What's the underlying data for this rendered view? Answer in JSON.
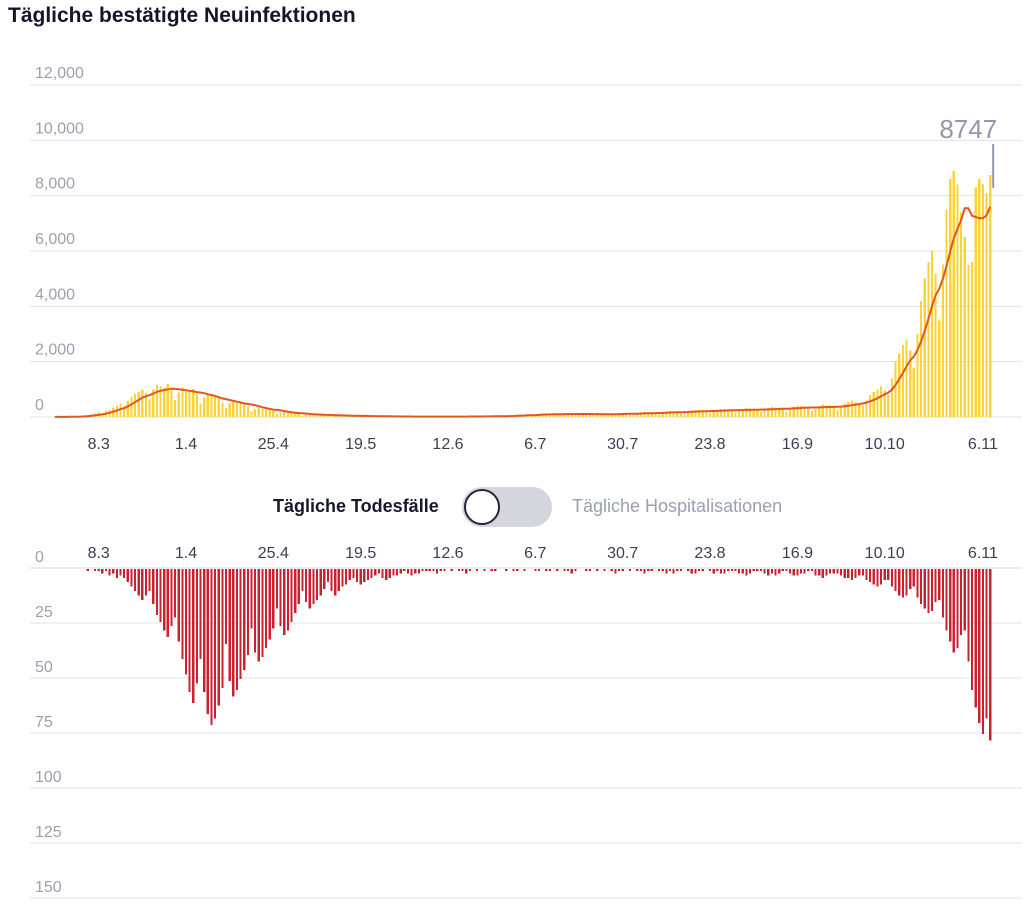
{
  "title": "Tägliche bestätigte Neuinfektionen",
  "toggle": {
    "left_label": "Tägliche Todesfälle",
    "right_label": "Tägliche Hospitalisationen",
    "selected": "left"
  },
  "colors": {
    "title_text": "#13152a",
    "axis_label_dark": "#3b3e51",
    "axis_label_muted": "#9ba0ae",
    "gridline": "#e3e3e9",
    "zero_line": "#d9d9df",
    "bars_yellow": "#fdd235",
    "line_orange": "#e2571c",
    "bars_red": "#c9212f",
    "annotation": "#9298ab",
    "toggle_track": "#d5d5dd",
    "toggle_knob_border": "#23263c"
  },
  "chart_data": [
    {
      "id": "infections",
      "type": "bar",
      "title": "Tägliche bestätigte Neuinfektionen",
      "overlay_line": "7-day moving average",
      "x_tick_labels": [
        "8.3",
        "1.4",
        "25.4",
        "19.5",
        "12.6",
        "6.7",
        "30.7",
        "23.8",
        "16.9",
        "10.10",
        "6.11"
      ],
      "x_tick_day_index": [
        12,
        36,
        60,
        84,
        108,
        132,
        156,
        180,
        204,
        228,
        255
      ],
      "y_ticks": [
        0,
        2000,
        4000,
        6000,
        8000,
        10000,
        12000
      ],
      "y_tick_labels": [
        "0",
        "2,000",
        "4,000",
        "6,000",
        "8,000",
        "10,000",
        "12,000"
      ],
      "ylim": [
        0,
        12000
      ],
      "grid": true,
      "annotation": {
        "label": "8747",
        "value": 8747,
        "position": "last-bar"
      },
      "values": [
        2,
        3,
        5,
        8,
        11,
        15,
        22,
        35,
        50,
        68,
        95,
        125,
        160,
        120,
        210,
        280,
        340,
        410,
        480,
        380,
        580,
        720,
        840,
        900,
        980,
        860,
        640,
        1000,
        1160,
        1100,
        1060,
        1190,
        1000,
        610,
        880,
        1060,
        980,
        920,
        1020,
        830,
        490,
        710,
        810,
        770,
        720,
        670,
        530,
        330,
        480,
        590,
        550,
        510,
        450,
        390,
        200,
        290,
        340,
        310,
        280,
        250,
        210,
        110,
        160,
        180,
        160,
        140,
        120,
        105,
        60,
        90,
        100,
        92,
        82,
        72,
        62,
        40,
        58,
        62,
        56,
        50,
        44,
        39,
        24,
        36,
        40,
        36,
        31,
        28,
        24,
        14,
        21,
        25,
        22,
        20,
        18,
        15,
        10,
        15,
        18,
        17,
        15,
        13,
        12,
        9,
        14,
        17,
        15,
        14,
        12,
        11,
        11,
        17,
        22,
        20,
        24,
        21,
        17,
        14,
        24,
        30,
        34,
        39,
        34,
        28,
        22,
        44,
        58,
        69,
        88,
        78,
        66,
        47,
        84,
        108,
        128,
        117,
        106,
        92,
        66,
        99,
        128,
        138,
        118,
        108,
        97,
        66,
        108,
        128,
        118,
        108,
        98,
        88,
        62,
        98,
        128,
        138,
        148,
        128,
        108,
        78,
        118,
        158,
        178,
        168,
        158,
        138,
        98,
        148,
        198,
        218,
        208,
        188,
        168,
        118,
        178,
        238,
        258,
        248,
        228,
        198,
        138,
        198,
        278,
        298,
        288,
        268,
        238,
        158,
        218,
        298,
        318,
        308,
        288,
        258,
        178,
        248,
        328,
        358,
        348,
        328,
        288,
        198,
        278,
        378,
        418,
        398,
        378,
        328,
        218,
        298,
        398,
        448,
        428,
        408,
        348,
        250,
        345,
        495,
        550,
        601,
        548,
        476,
        395,
        602,
        795,
        903,
        1002,
        1095,
        952,
        801,
        1395,
        2002,
        2295,
        2601,
        2795,
        2402,
        1795,
        3004,
        4195,
        5003,
        5595,
        6004,
        5195,
        3495,
        5504,
        7495,
        8603,
        8895,
        8404,
        7395,
        6504,
        5495,
        5603,
        8295,
        8604,
        8395,
        8103,
        8747
      ]
    },
    {
      "id": "deaths",
      "type": "bar",
      "title": "Tägliche Todesfälle",
      "inverted": true,
      "x_tick_labels": [
        "8.3",
        "1.4",
        "25.4",
        "19.5",
        "12.6",
        "6.7",
        "30.7",
        "23.8",
        "16.9",
        "10.10",
        "6.11"
      ],
      "x_tick_day_index": [
        12,
        36,
        60,
        84,
        108,
        132,
        156,
        180,
        204,
        228,
        255
      ],
      "y_ticks": [
        0,
        25,
        50,
        75,
        100,
        125,
        150
      ],
      "y_tick_labels": [
        "0",
        "25",
        "50",
        "75",
        "100",
        "125",
        "150"
      ],
      "ylim": [
        0,
        150
      ],
      "grid": true,
      "values": [
        0,
        0,
        0,
        0,
        0,
        0,
        0,
        0,
        0,
        1,
        0,
        1,
        1,
        2,
        1,
        3,
        2,
        4,
        3,
        4,
        6,
        8,
        10,
        12,
        14,
        12,
        10,
        16,
        21,
        24,
        28,
        31,
        26,
        22,
        33,
        41,
        48,
        56,
        61,
        52,
        41,
        56,
        66,
        71,
        68,
        62,
        54,
        34,
        51,
        58,
        55,
        50,
        46,
        39,
        27,
        38,
        42,
        40,
        36,
        32,
        27,
        18,
        26,
        30,
        28,
        24,
        20,
        16,
        10,
        15,
        18,
        16,
        14,
        12,
        9,
        6,
        10,
        12,
        10,
        8,
        7,
        5,
        4,
        6,
        7,
        6,
        5,
        4,
        3,
        2,
        4,
        5,
        4,
        3,
        3,
        2,
        1,
        2,
        3,
        2,
        2,
        1,
        1,
        1,
        1,
        2,
        1,
        1,
        0,
        1,
        0,
        1,
        1,
        2,
        1,
        0,
        1,
        0,
        1,
        0,
        1,
        1,
        0,
        0,
        1,
        0,
        1,
        1,
        0,
        1,
        0,
        0,
        1,
        1,
        0,
        1,
        1,
        0,
        1,
        0,
        1,
        1,
        2,
        1,
        0,
        0,
        1,
        1,
        0,
        1,
        0,
        1,
        0,
        1,
        2,
        1,
        1,
        0,
        1,
        0,
        1,
        1,
        2,
        1,
        1,
        0,
        1,
        1,
        2,
        1,
        2,
        1,
        1,
        0,
        1,
        2,
        2,
        1,
        1,
        0,
        1,
        2,
        1,
        2,
        2,
        1,
        1,
        1,
        2,
        2,
        3,
        2,
        1,
        1,
        1,
        2,
        3,
        2,
        3,
        2,
        1,
        1,
        2,
        3,
        3,
        2,
        2,
        1,
        1,
        3,
        3,
        4,
        3,
        2,
        2,
        2,
        3,
        4,
        4,
        5,
        4,
        3,
        3,
        5,
        6,
        7,
        8,
        7,
        5,
        5,
        8,
        10,
        12,
        13,
        12,
        9,
        8,
        13,
        16,
        18,
        20,
        19,
        15,
        14,
        22,
        28,
        33,
        38,
        36,
        30,
        28,
        42,
        55,
        63,
        70,
        75,
        68,
        78
      ]
    }
  ]
}
